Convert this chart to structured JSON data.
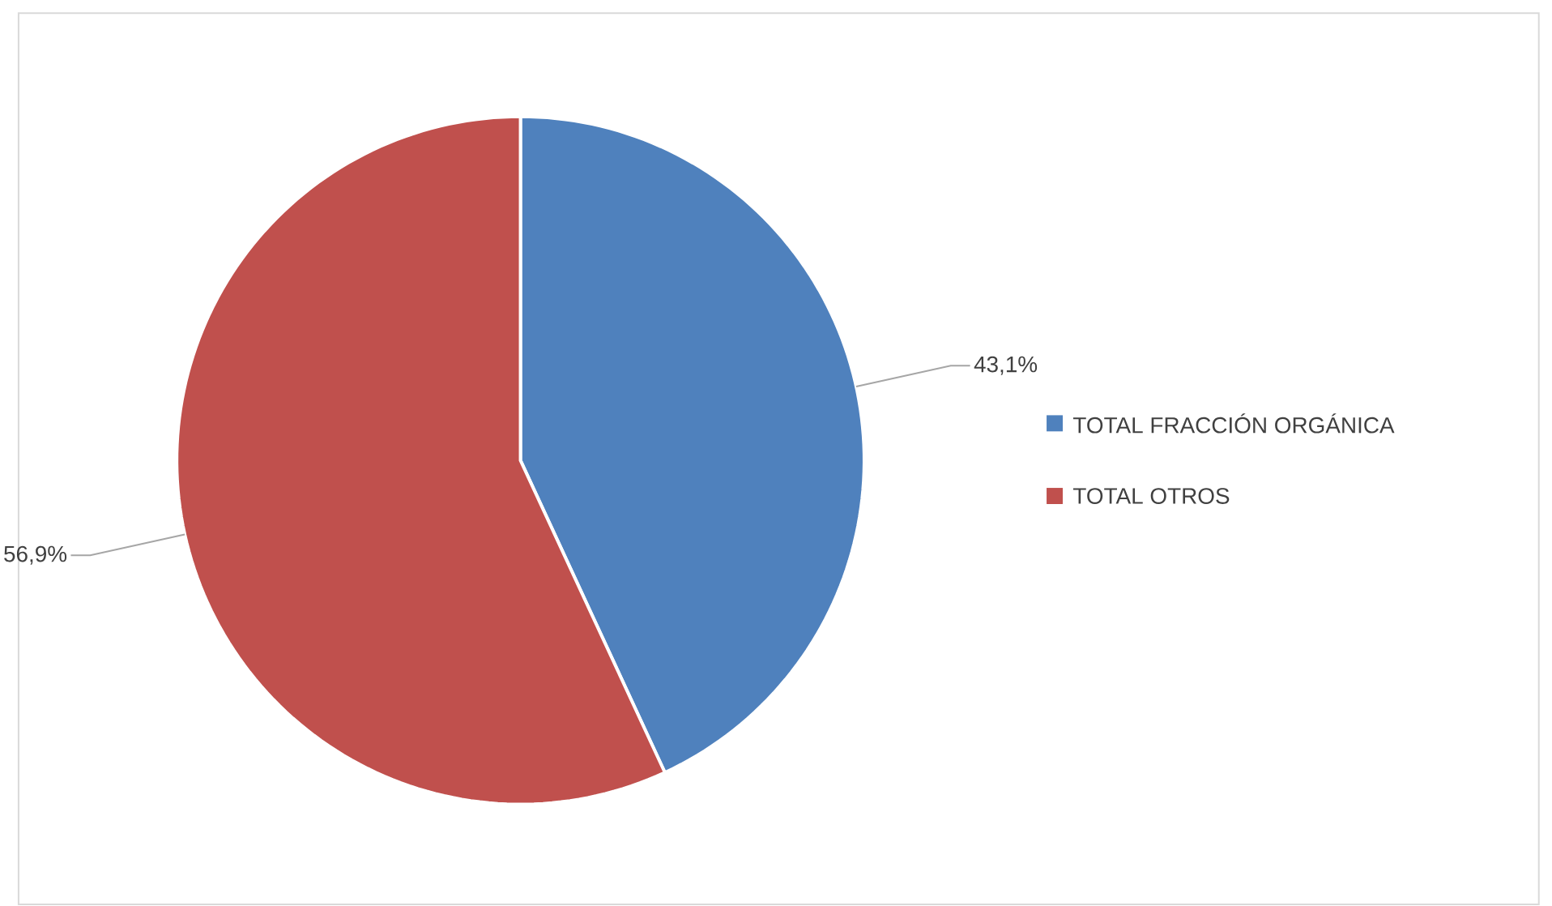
{
  "chart_data": {
    "type": "pie",
    "categories": [
      "TOTAL FRACCIÓN ORGÁNICA",
      "TOTAL OTROS"
    ],
    "values": [
      43.1,
      56.9
    ],
    "colors": [
      "#4f81bd",
      "#c0504d"
    ],
    "value_labels": [
      "43,1%",
      "56,9%"
    ],
    "legend": "right"
  }
}
